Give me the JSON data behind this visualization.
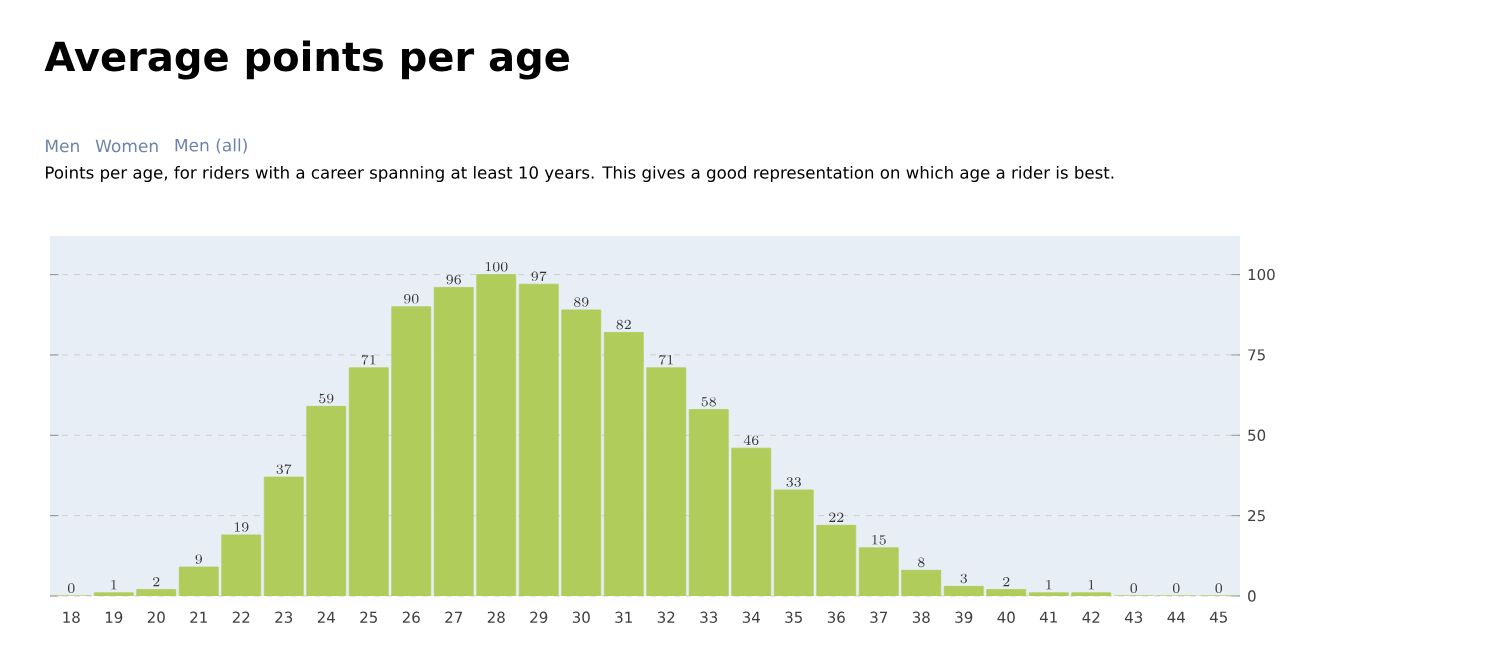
{
  "chart_data": {
    "type": "bar",
    "title": "Average points per age",
    "subtitle": "Points per age, for riders with a career spanning at least 10 years. This gives a good representation on which age a rider is best.",
    "annotations": [
      "Men",
      "Women",
      "Men (all)"
    ],
    "categories": [
      "18",
      "19",
      "20",
      "21",
      "22",
      "23",
      "24",
      "25",
      "26",
      "27",
      "28",
      "29",
      "30",
      "31",
      "32",
      "33",
      "34",
      "35",
      "36",
      "37",
      "38",
      "39",
      "40",
      "41",
      "42",
      "43",
      "44",
      "45"
    ],
    "values": [
      0,
      1,
      2,
      9,
      19,
      37,
      59,
      71,
      90,
      96,
      100,
      97,
      89,
      82,
      71,
      58,
      46,
      33,
      22,
      15,
      8,
      3,
      2,
      1,
      1,
      0,
      0,
      0
    ],
    "color": "#b0cc5a",
    "ylim": [
      0,
      112
    ],
    "yticks": [
      0,
      25,
      50,
      75,
      100
    ],
    "grid": "y",
    "data_labels": true
  }
}
